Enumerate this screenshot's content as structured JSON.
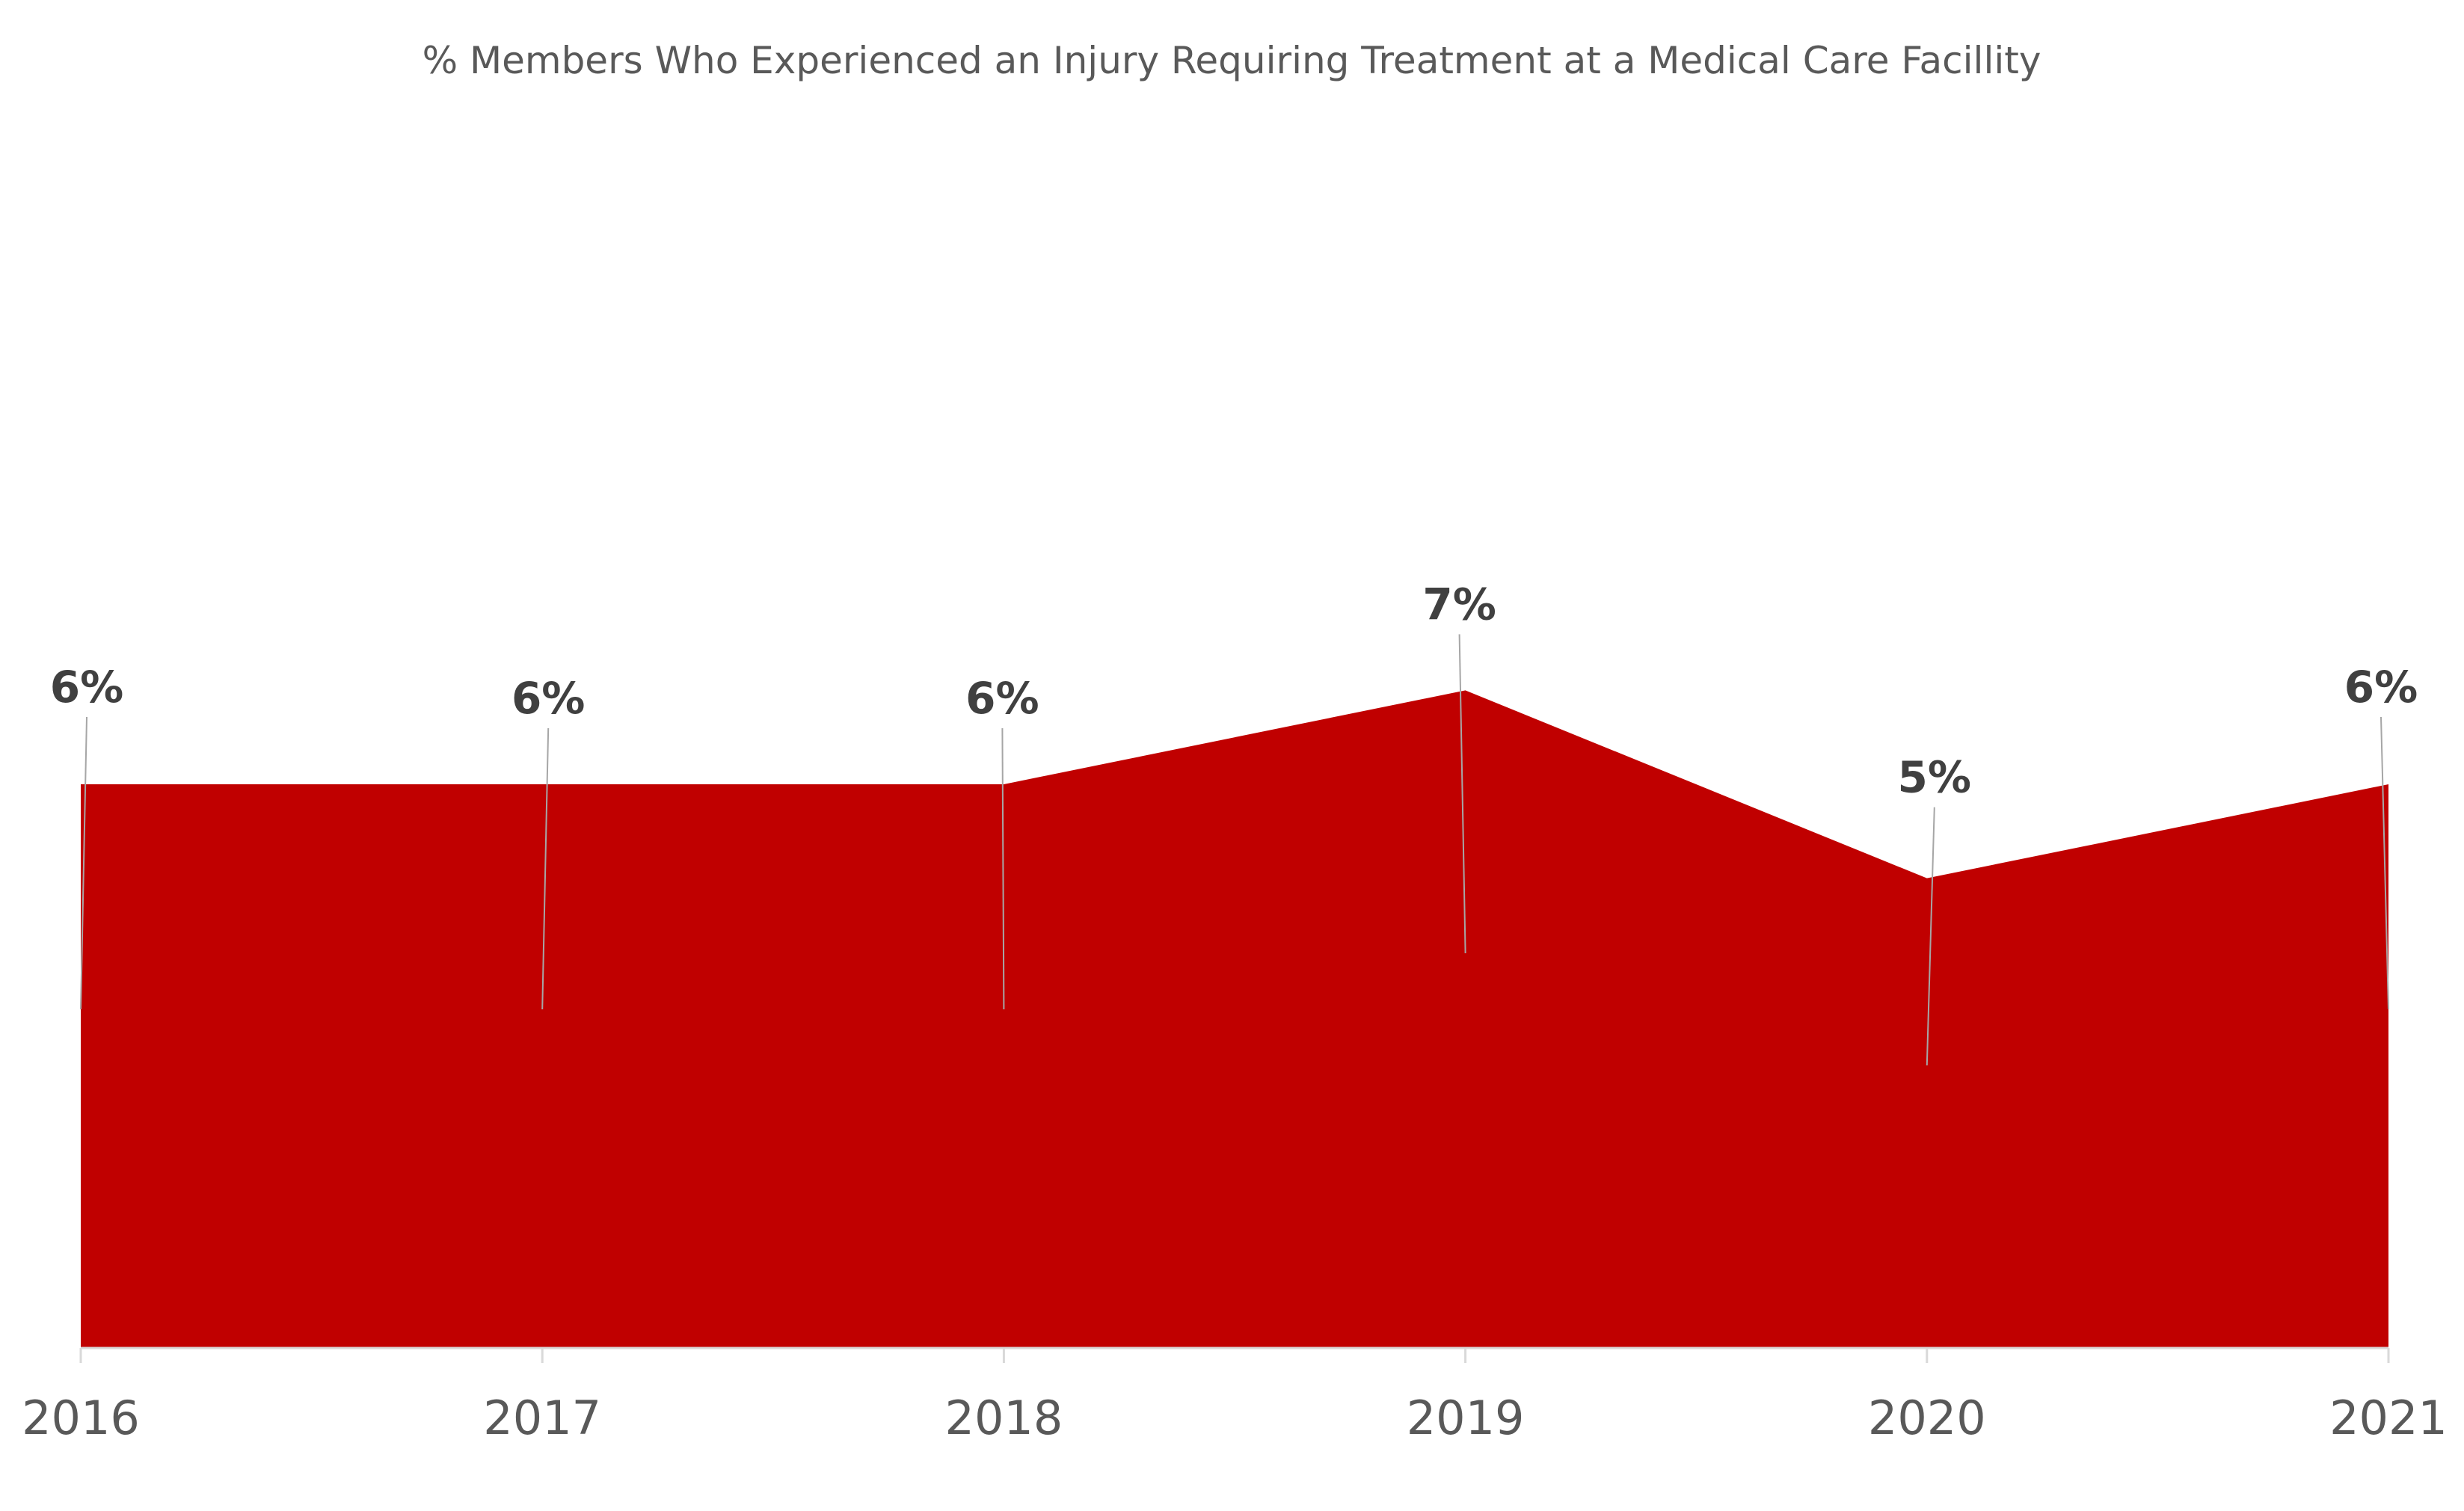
{
  "chart_data": {
    "type": "area",
    "title": "% Members Who Experienced an Injury Requiring Treatment at a Medical Care Facillity",
    "xlabel": "",
    "ylabel": "",
    "categories": [
      "2016",
      "2017",
      "2018",
      "2019",
      "2020",
      "2021"
    ],
    "series": [
      {
        "values": [
          6,
          6,
          6,
          7,
          5,
          6
        ],
        "labels": [
          "6%",
          "6%",
          "6%",
          "7%",
          "5%",
          "6%"
        ],
        "color": "#C00000"
      }
    ],
    "ylim": [
      0,
      12
    ],
    "grid": false,
    "legend": "none",
    "leader_line_color": "#A6A6A6",
    "axis_color": "#D9D9D9"
  }
}
